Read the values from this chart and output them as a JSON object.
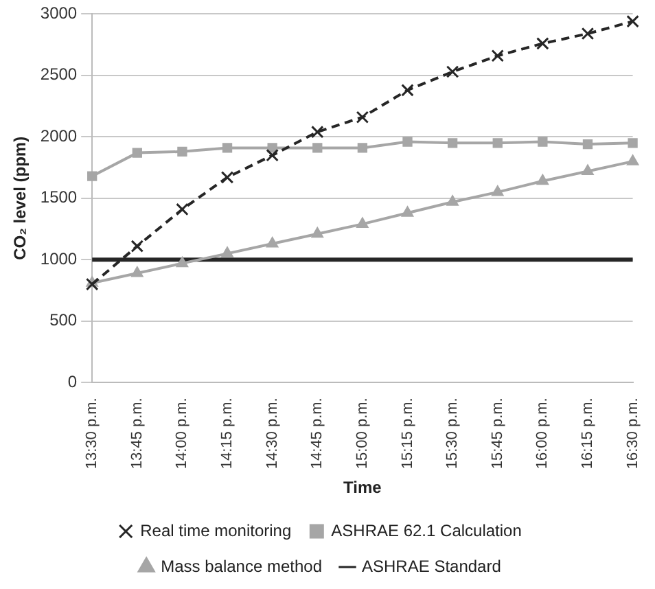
{
  "chart_data": {
    "type": "line",
    "xlabel": "Time",
    "ylabel": "CO₂ level (ppm)",
    "categories": [
      "13:30 p.m.",
      "13:45 p.m.",
      "14:00 p.m.",
      "14:15 p.m.",
      "14:30 p.m.",
      "14:45 p.m.",
      "15:00 p.m.",
      "15:15 p.m.",
      "15:30 p.m.",
      "15:45 p.m.",
      "16:00 p.m.",
      "16:15 p.m.",
      "16:30 p.m."
    ],
    "series": [
      {
        "name": "ASHRAE Standard",
        "color": "#262626",
        "marker": "none",
        "line_style": "solid",
        "values": [
          1000,
          1000,
          1000,
          1000,
          1000,
          1000,
          1000,
          1000,
          1000,
          1000,
          1000,
          1000,
          1000
        ]
      },
      {
        "name": "Mass balance method",
        "color": "#a6a6a6",
        "marker": "triangle",
        "line_style": "solid",
        "values": [
          810,
          890,
          970,
          1050,
          1130,
          1210,
          1290,
          1380,
          1470,
          1550,
          1640,
          1720,
          1800
        ]
      },
      {
        "name": "ASHRAE 62.1 Calculation",
        "color": "#a6a6a6",
        "marker": "square",
        "line_style": "solid",
        "values": [
          1680,
          1870,
          1880,
          1910,
          1910,
          1910,
          1910,
          1960,
          1950,
          1950,
          1960,
          1940,
          1950
        ]
      },
      {
        "name": "Real time monitoring",
        "color": "#262626",
        "marker": "cross",
        "line_style": "dashed",
        "values": [
          800,
          1110,
          1410,
          1670,
          1850,
          2040,
          2160,
          2380,
          2530,
          2660,
          2760,
          2840,
          2940
        ]
      }
    ],
    "ylim": [
      0,
      3000
    ],
    "yticks": [
      0,
      500,
      1000,
      1500,
      2000,
      2500,
      3000
    ],
    "grid": "y",
    "legend": "bottom"
  }
}
